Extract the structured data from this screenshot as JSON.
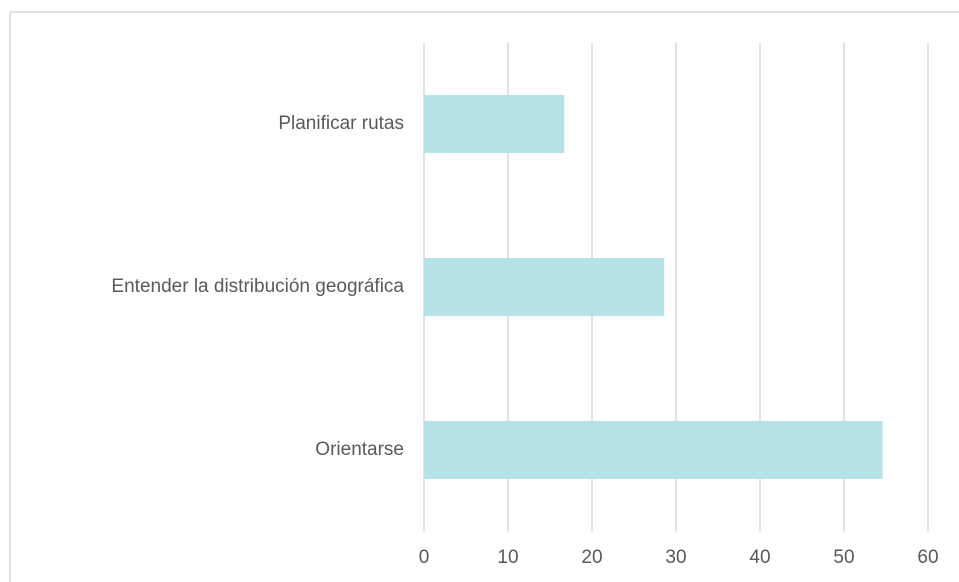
{
  "chart_data": {
    "type": "barh",
    "categories": [
      "Planificar rutas",
      "Entender la distribución geográfica",
      "Orientarse"
    ],
    "values": [
      16.7,
      28.6,
      54.6
    ],
    "color": "#b5e3e8",
    "xlim": [
      0,
      60
    ],
    "xticks": [
      0,
      10,
      20,
      30,
      40,
      50,
      60
    ],
    "grid": true
  }
}
